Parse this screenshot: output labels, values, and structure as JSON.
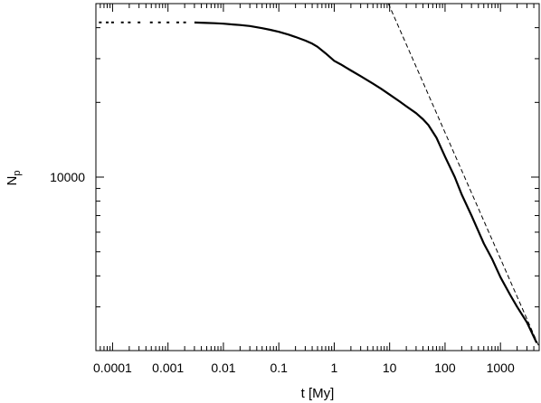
{
  "chart_data": {
    "type": "scatter",
    "title": "",
    "xlabel": "t [My]",
    "ylabel_main": "N",
    "ylabel_sub": "p",
    "x_scale": "log",
    "y_scale": "log",
    "xlim": [
      5e-05,
      5000
    ],
    "ylim": [
      2000,
      50000
    ],
    "x_ticks": [
      0.0001,
      0.001,
      0.01,
      0.1,
      1,
      10,
      100,
      1000
    ],
    "x_tick_labels": [
      "0.0001",
      "0.001",
      "0.01",
      "0.1",
      "1",
      "10",
      "100",
      "1000"
    ],
    "y_ticks": [
      10000
    ],
    "y_tick_labels": [
      "10000"
    ],
    "grid": false,
    "legend": "none",
    "colors": {
      "data": "#000000",
      "fit": "#000000",
      "axes": "#000000"
    },
    "series": [
      {
        "style": "points",
        "x": [
          6e-05,
          8e-05,
          0.0001,
          0.00015,
          0.0002,
          0.0003,
          0.0005,
          0.0007,
          0.001,
          0.0015,
          0.002,
          0.003,
          0.005,
          0.007,
          0.01,
          0.015,
          0.02,
          0.03,
          0.05,
          0.07,
          0.1,
          0.15,
          0.2,
          0.3,
          0.4,
          0.5,
          0.7,
          1,
          1.3,
          2,
          3,
          5,
          7,
          10,
          15,
          20,
          30,
          40,
          50,
          70,
          100,
          150,
          200,
          300,
          500,
          700,
          1000,
          1500,
          2000,
          3000,
          4500
        ],
        "y": [
          42000,
          42000,
          42000,
          42000,
          42000,
          42000,
          42000,
          42000,
          42000,
          42000,
          42000,
          41950,
          41800,
          41700,
          41500,
          41200,
          41000,
          40600,
          39800,
          39200,
          38500,
          37500,
          36700,
          35500,
          34500,
          33500,
          31500,
          29400,
          28500,
          26900,
          25500,
          23800,
          22700,
          21500,
          20200,
          19300,
          18100,
          17100,
          16200,
          14400,
          12100,
          10000,
          8500,
          7000,
          5400,
          4700,
          3950,
          3350,
          3000,
          2600,
          2150
        ]
      },
      {
        "style": "dashed-line",
        "x": [
          9.5,
          5000
        ],
        "y": [
          50000,
          2070
        ]
      }
    ]
  }
}
